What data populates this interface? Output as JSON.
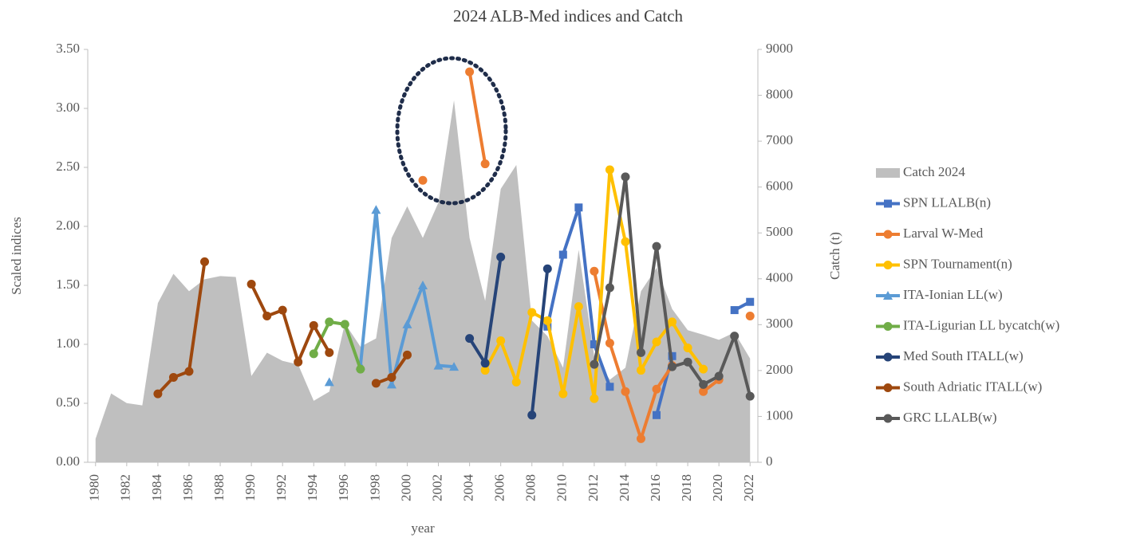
{
  "chart_data": {
    "type": "line",
    "title": "2024 ALB-Med indices and Catch",
    "x_label": "year",
    "y_label": "Scaled indices",
    "y2_label": "Catch (t)",
    "x": [
      1980,
      1981,
      1982,
      1983,
      1984,
      1985,
      1986,
      1987,
      1988,
      1989,
      1990,
      1991,
      1992,
      1993,
      1994,
      1995,
      1996,
      1997,
      1998,
      1999,
      2000,
      2001,
      2002,
      2003,
      2004,
      2005,
      2006,
      2007,
      2008,
      2009,
      2010,
      2011,
      2012,
      2013,
      2014,
      2015,
      2016,
      2017,
      2018,
      2019,
      2020,
      2021,
      2022
    ],
    "xlim": [
      1979.5,
      2022.5
    ],
    "xticks": [
      1980,
      1982,
      1984,
      1986,
      1988,
      1990,
      1992,
      1994,
      1996,
      1998,
      2000,
      2002,
      2004,
      2006,
      2008,
      2010,
      2012,
      2014,
      2016,
      2018,
      2020,
      2022
    ],
    "ylim": [
      0,
      3.5
    ],
    "yticks": [
      {
        "value": 0,
        "label": "0.00"
      },
      {
        "value": 0.5,
        "label": "0.50"
      },
      {
        "value": 1,
        "label": "1.00"
      },
      {
        "value": 1.5,
        "label": "1.50"
      },
      {
        "value": 2,
        "label": "2.00"
      },
      {
        "value": 2.5,
        "label": "2.50"
      },
      {
        "value": 3,
        "label": "3.00"
      },
      {
        "value": 3.5,
        "label": "3.50"
      }
    ],
    "y2lim": [
      0,
      9000
    ],
    "y2ticks": [
      0,
      1000,
      2000,
      3000,
      4000,
      5000,
      6000,
      7000,
      8000,
      9000
    ],
    "series": [
      {
        "name": "Catch 2024",
        "color": "#bfbfbf",
        "kind": "area",
        "axis": "y2",
        "values": [
          510,
          1500,
          1290,
          1240,
          3470,
          4110,
          3730,
          3990,
          4060,
          4040,
          1880,
          2390,
          2210,
          2130,
          1340,
          1540,
          3030,
          2520,
          2700,
          4890,
          5580,
          4890,
          5660,
          7890,
          4890,
          3520,
          5960,
          6480,
          3090,
          2750,
          2060,
          4630,
          2310,
          1800,
          2060,
          3730,
          4240,
          3340,
          2880,
          2780,
          2670,
          2830,
          2260
        ]
      },
      {
        "name": "SPN LLALB(n)",
        "color": "#4472c4",
        "marker": "square",
        "values": [
          null,
          null,
          null,
          null,
          null,
          null,
          null,
          null,
          null,
          null,
          null,
          null,
          null,
          null,
          null,
          null,
          null,
          null,
          null,
          null,
          null,
          null,
          null,
          null,
          null,
          null,
          null,
          null,
          null,
          1.15,
          1.76,
          2.16,
          1.0,
          0.64,
          null,
          null,
          0.4,
          0.9,
          null,
          null,
          null,
          1.29,
          1.36
        ]
      },
      {
        "name": "Larval W-Med",
        "color": "#ed7d31",
        "marker": "circle",
        "values": [
          null,
          null,
          null,
          null,
          null,
          null,
          null,
          null,
          null,
          null,
          null,
          null,
          null,
          null,
          null,
          null,
          null,
          null,
          null,
          null,
          null,
          2.39,
          null,
          null,
          3.31,
          2.53,
          null,
          null,
          null,
          null,
          null,
          null,
          1.62,
          1.01,
          0.6,
          0.2,
          0.62,
          0.82,
          null,
          0.6,
          0.7,
          null,
          1.24
        ]
      },
      {
        "name": "SPN Tournament(n)",
        "color": "#ffc000",
        "marker": "circle",
        "values": [
          null,
          null,
          null,
          null,
          null,
          null,
          null,
          null,
          null,
          null,
          null,
          null,
          null,
          null,
          null,
          null,
          null,
          null,
          null,
          null,
          null,
          null,
          null,
          null,
          null,
          0.78,
          1.03,
          0.68,
          1.27,
          1.2,
          0.58,
          1.32,
          0.54,
          2.48,
          1.87,
          0.78,
          1.02,
          1.19,
          0.97,
          0.79,
          null,
          null,
          null
        ]
      },
      {
        "name": "ITA-Ionian LL(w)",
        "color": "#5b9bd5",
        "marker": "triangle",
        "values": [
          null,
          null,
          null,
          null,
          null,
          null,
          null,
          null,
          null,
          null,
          null,
          null,
          null,
          null,
          null,
          0.68,
          null,
          0.82,
          2.14,
          0.66,
          1.17,
          1.5,
          0.82,
          0.81,
          null,
          null,
          null,
          null,
          null,
          null,
          null,
          null,
          null,
          null,
          null,
          null,
          null,
          null,
          null,
          null,
          null,
          null,
          null
        ]
      },
      {
        "name": "ITA-Ligurian LL bycatch(w)",
        "color": "#70ad47",
        "marker": "circle",
        "values": [
          null,
          null,
          null,
          null,
          null,
          null,
          null,
          null,
          null,
          null,
          null,
          null,
          null,
          null,
          0.92,
          1.19,
          1.17,
          0.79,
          null,
          null,
          null,
          null,
          null,
          null,
          null,
          null,
          null,
          null,
          null,
          null,
          null,
          null,
          null,
          null,
          null,
          null,
          null,
          null,
          null,
          null,
          null,
          null,
          null
        ]
      },
      {
        "name": "Med South ITALL(w)",
        "color": "#264478",
        "marker": "circle",
        "values": [
          null,
          null,
          null,
          null,
          null,
          null,
          null,
          null,
          null,
          null,
          null,
          null,
          null,
          null,
          null,
          null,
          null,
          null,
          null,
          null,
          null,
          null,
          null,
          null,
          1.05,
          0.84,
          1.74,
          null,
          0.4,
          1.64,
          null,
          null,
          null,
          null,
          null,
          null,
          null,
          null,
          null,
          null,
          null,
          null,
          null
        ]
      },
      {
        "name": "South Adriatic ITALL(w)",
        "color": "#9e480e",
        "marker": "circle",
        "values": [
          null,
          null,
          null,
          null,
          0.58,
          0.72,
          0.77,
          1.7,
          null,
          null,
          1.51,
          1.24,
          1.29,
          0.85,
          1.16,
          0.93,
          null,
          null,
          0.67,
          0.72,
          0.91,
          null,
          null,
          null,
          null,
          null,
          null,
          null,
          null,
          null,
          null,
          null,
          null,
          null,
          null,
          null,
          null,
          null,
          null,
          null,
          null,
          null,
          null
        ]
      },
      {
        "name": "GRC  LLALB(w)",
        "color": "#595959",
        "marker": "circle",
        "values": [
          null,
          null,
          null,
          null,
          null,
          null,
          null,
          null,
          null,
          null,
          null,
          null,
          null,
          null,
          null,
          null,
          null,
          null,
          null,
          null,
          null,
          null,
          null,
          null,
          null,
          null,
          null,
          null,
          null,
          null,
          null,
          null,
          0.83,
          1.48,
          2.42,
          0.93,
          1.83,
          0.81,
          0.85,
          0.66,
          0.73,
          1.07,
          0.56
        ]
      }
    ]
  }
}
